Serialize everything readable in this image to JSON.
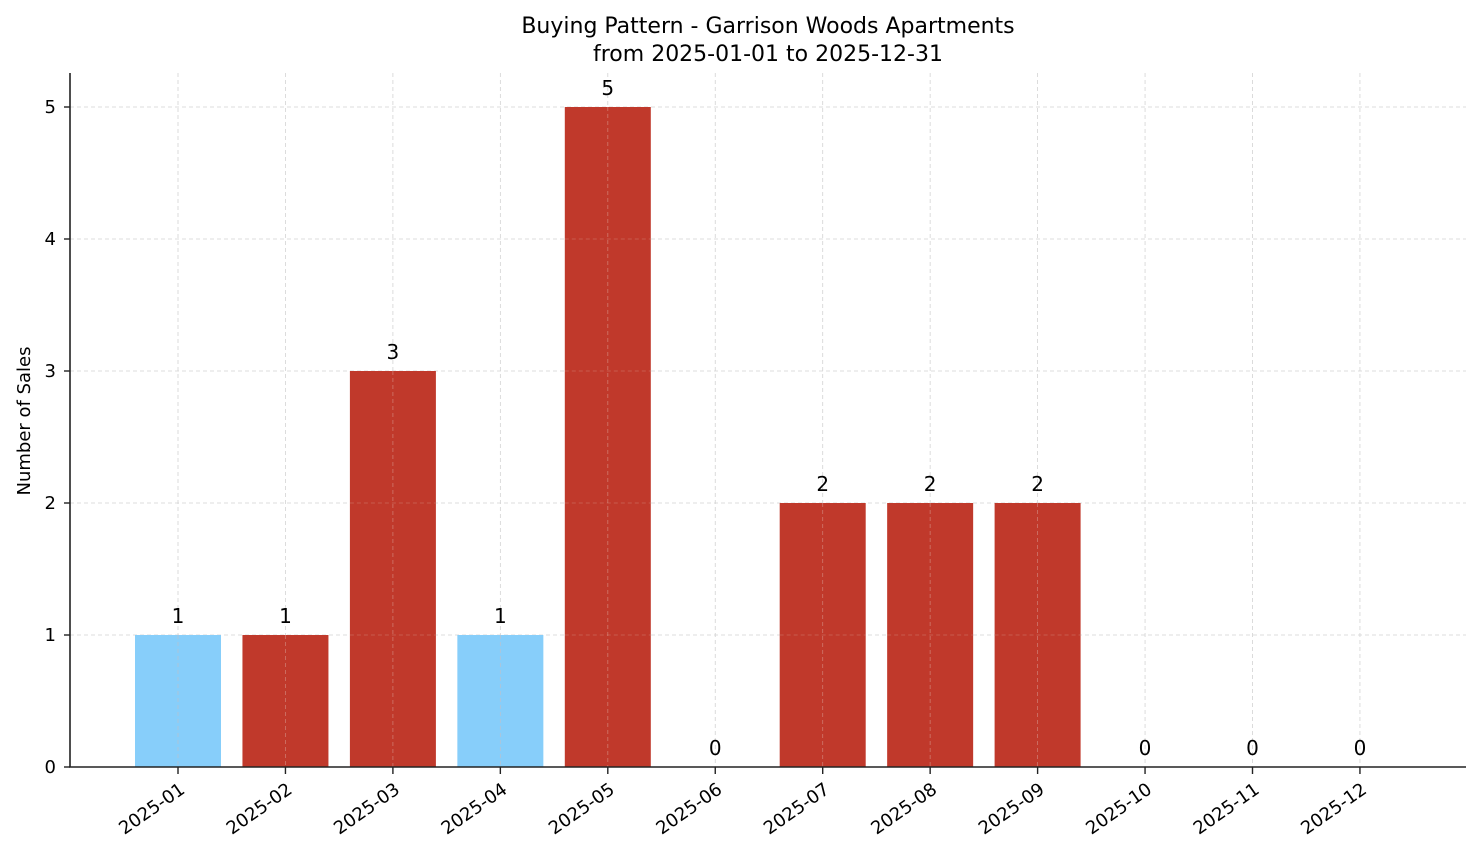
{
  "chart_data": {
    "type": "bar",
    "title": "Buying Pattern - Garrison Woods Apartments",
    "subtitle": "from 2025-01-01 to 2025-12-31",
    "xlabel": "",
    "ylabel": "Number of Sales",
    "categories": [
      "2025-01",
      "2025-02",
      "2025-03",
      "2025-04",
      "2025-05",
      "2025-06",
      "2025-07",
      "2025-08",
      "2025-09",
      "2025-10",
      "2025-11",
      "2025-12"
    ],
    "values": [
      1,
      1,
      3,
      1,
      5,
      0,
      2,
      2,
      2,
      0,
      0,
      0
    ],
    "bar_colors": [
      "#87cefa",
      "#c0392b",
      "#c0392b",
      "#87cefa",
      "#c0392b",
      "#c0392b",
      "#c0392b",
      "#c0392b",
      "#c0392b",
      "#c0392b",
      "#c0392b",
      "#c0392b"
    ],
    "data_labels": [
      "1",
      "1",
      "3",
      "1",
      "5",
      "0",
      "2",
      "2",
      "2",
      "0",
      "0",
      "0"
    ],
    "ylim": [
      0,
      5.25
    ],
    "yticks": [
      0,
      1,
      2,
      3,
      4,
      5
    ],
    "grid": true,
    "legend": null
  },
  "colors": {
    "highlight": "#87cefa",
    "default": "#c0392b",
    "grid": "#d3d3d3",
    "axis": "#222222"
  }
}
